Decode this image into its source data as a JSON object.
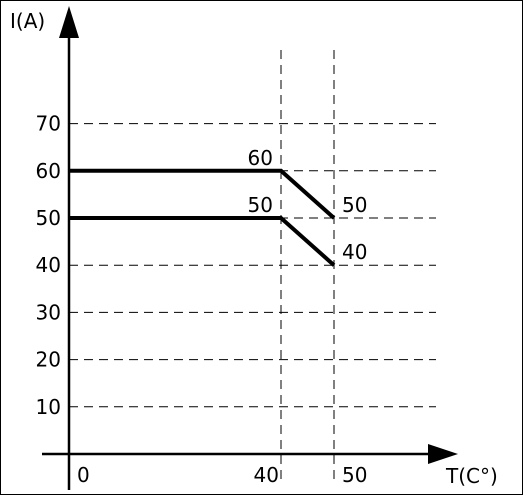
{
  "chart_data": {
    "type": "line",
    "xlabel": "T(C°)",
    "ylabel": "I(A)",
    "x_ticks": [
      "0",
      "40",
      "50"
    ],
    "y_ticks": [
      "10",
      "20",
      "30",
      "40",
      "50",
      "60",
      "70"
    ],
    "xlim": [
      0,
      78
    ],
    "ylim": [
      0,
      90
    ],
    "grid": true,
    "series": [
      {
        "points": [
          [
            0,
            60
          ],
          [
            40,
            60
          ],
          [
            50,
            50
          ]
        ]
      },
      {
        "points": [
          [
            0,
            50
          ],
          [
            40,
            50
          ],
          [
            50,
            40
          ]
        ]
      }
    ],
    "annotations": [
      {
        "text": "60",
        "x": 40,
        "y": 60,
        "anchor": "end"
      },
      {
        "text": "50",
        "x": 50,
        "y": 50,
        "anchor": "start"
      },
      {
        "text": "50",
        "x": 40,
        "y": 50,
        "anchor": "end"
      },
      {
        "text": "40",
        "x": 50,
        "y": 40,
        "anchor": "start"
      }
    ]
  }
}
